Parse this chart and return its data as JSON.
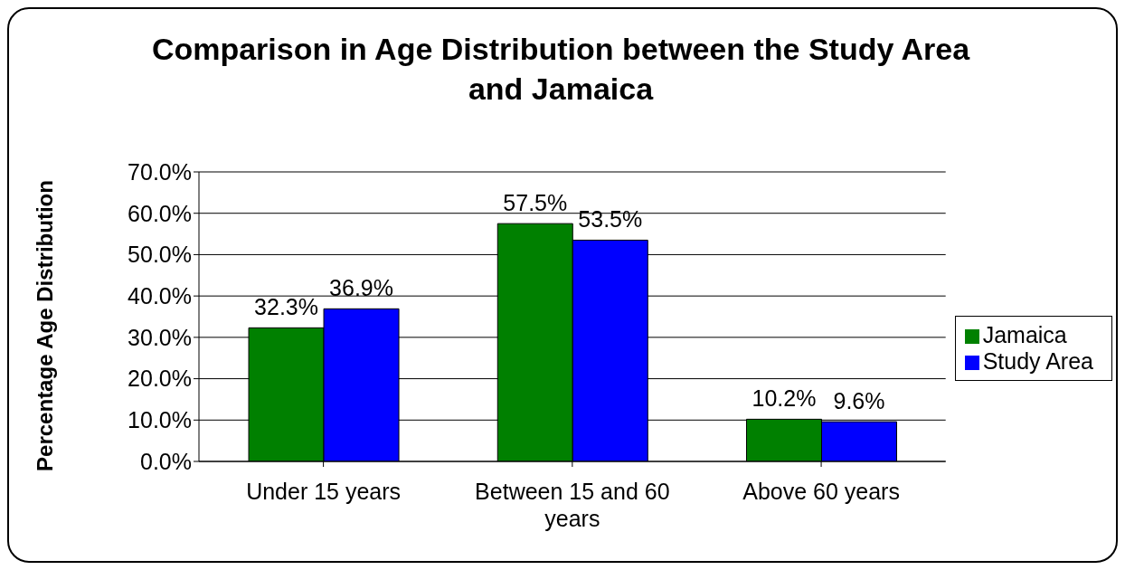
{
  "chart_data": {
    "type": "bar",
    "title": "Comparison in Age Distribution between the Study Area and Jamaica",
    "ylabel": "Percentage Age Distribution",
    "categories": [
      "Under 15 years",
      "Between 15 and 60 years",
      "Above 60 years"
    ],
    "series": [
      {
        "name": "Jamaica",
        "color": "#008000",
        "values": [
          32.3,
          57.5,
          10.2
        ],
        "value_labels": [
          "32.3%",
          "57.5%",
          "10.2%"
        ]
      },
      {
        "name": "Study Area",
        "color": "#0000ff",
        "values": [
          36.9,
          53.5,
          9.6
        ],
        "value_labels": [
          "36.9%",
          "53.5%",
          "9.6%"
        ]
      }
    ],
    "ylim": [
      0,
      70
    ],
    "yticks": [
      {
        "value": 0,
        "label": "0.0%"
      },
      {
        "value": 10,
        "label": "10.0%"
      },
      {
        "value": 20,
        "label": "20.0%"
      },
      {
        "value": 30,
        "label": "30.0%"
      },
      {
        "value": 40,
        "label": "40.0%"
      },
      {
        "value": 50,
        "label": "50.0%"
      },
      {
        "value": 60,
        "label": "60.0%"
      },
      {
        "value": 70,
        "label": "70.0%"
      }
    ],
    "grid": "y",
    "legend": "right"
  }
}
